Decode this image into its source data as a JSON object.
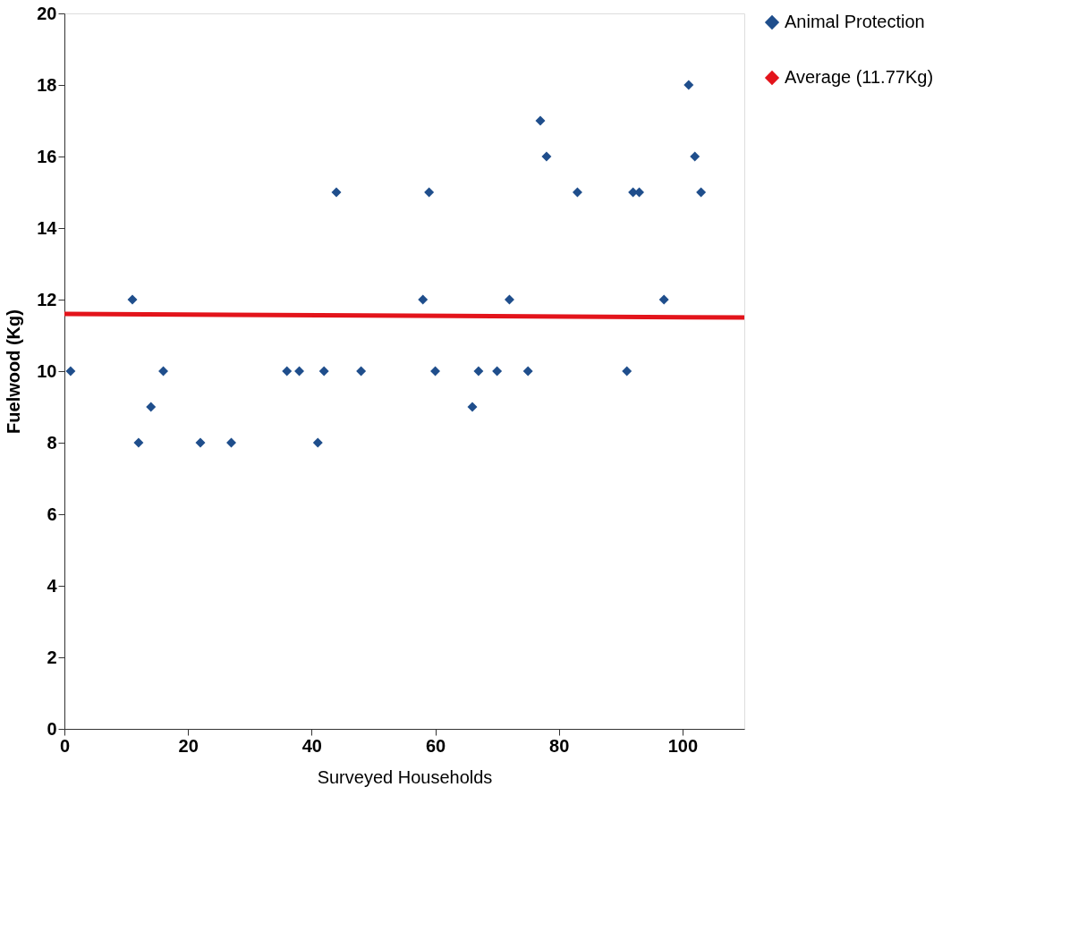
{
  "chart_data": {
    "type": "scatter",
    "xlabel": "Surveyed Households",
    "ylabel": "Fuelwood (Kg)",
    "xlim": [
      0,
      110
    ],
    "xticks": [
      0,
      20,
      40,
      60,
      80,
      100
    ],
    "ylim": [
      0,
      20
    ],
    "yticks": [
      0,
      2,
      4,
      6,
      8,
      10,
      12,
      14,
      16,
      18,
      20
    ],
    "grid": false,
    "legend": "right",
    "series": [
      {
        "name": "Animal Protection",
        "color": "#1f4e8c",
        "marker": "diamond",
        "x": [
          1,
          11,
          12,
          14,
          16,
          22,
          27,
          36,
          38,
          41,
          42,
          44,
          48,
          58,
          59,
          60,
          66,
          67,
          70,
          72,
          75,
          77,
          78,
          83,
          91,
          92,
          93,
          97,
          101,
          102,
          103
        ],
        "values": [
          10,
          12,
          8,
          9,
          10,
          8,
          8,
          10,
          10,
          8,
          10,
          15,
          10,
          12,
          15,
          10,
          9,
          10,
          10,
          12,
          10,
          17,
          16,
          15,
          10,
          15,
          15,
          12,
          18,
          16,
          15
        ]
      },
      {
        "name": "Average (11.77Kg)",
        "color": "#e3141b",
        "type": "line",
        "marker": "none",
        "line_style": "solid",
        "x": [
          0,
          110
        ],
        "values": [
          11.6,
          11.5
        ]
      }
    ]
  }
}
